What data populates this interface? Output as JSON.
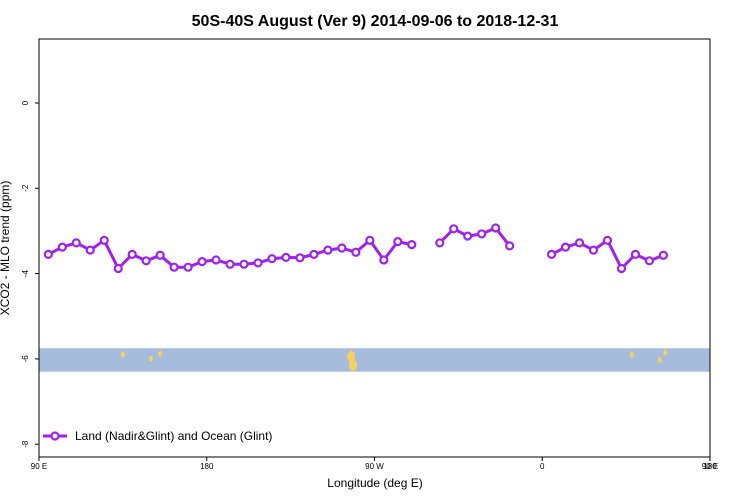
{
  "chart_data": {
    "type": "line",
    "title": "50S-40S August (Ver 9)   2014-09-06 to 2018-12-31",
    "xlabel": "Longitude (deg E)",
    "ylabel": "XCO2 - MLO trend (ppm)",
    "xlim": [
      90,
      450
    ],
    "ylim": [
      -8.3,
      1.5
    ],
    "xticks": [
      {
        "value": 90,
        "label": "90 E"
      },
      {
        "value": 180,
        "label": "180"
      },
      {
        "value": 270,
        "label": "90 W"
      },
      {
        "value": 360,
        "label": "0"
      },
      {
        "value": 450,
        "label": "90 E"
      },
      {
        "value": 540,
        "label": "180"
      }
    ],
    "yticks": [
      {
        "value": 0,
        "label": "0"
      },
      {
        "value": -2,
        "label": "-2"
      },
      {
        "value": -4,
        "label": "-4"
      },
      {
        "value": -6,
        "label": "-6"
      },
      {
        "value": -8,
        "label": "-8"
      }
    ],
    "grid": false,
    "legend": {
      "position": "bottom-left"
    },
    "series": [
      {
        "name": "Land (Nadir&Glint) and Ocean (Glint)",
        "color": "#a020f0",
        "segments": [
          [
            [
              95,
              -3.55
            ],
            [
              102.5,
              -3.38
            ],
            [
              110,
              -3.28
            ],
            [
              117.5,
              -3.45
            ],
            [
              125,
              -3.22
            ],
            [
              132.5,
              -3.88
            ],
            [
              140,
              -3.55
            ],
            [
              147.5,
              -3.7
            ],
            [
              155,
              -3.57
            ],
            [
              162.5,
              -3.85
            ],
            [
              170,
              -3.85
            ],
            [
              177.5,
              -3.72
            ],
            [
              185,
              -3.68
            ],
            [
              192.5,
              -3.78
            ],
            [
              200,
              -3.78
            ],
            [
              207.5,
              -3.75
            ],
            [
              215,
              -3.65
            ],
            [
              222.5,
              -3.62
            ],
            [
              230,
              -3.63
            ],
            [
              237.5,
              -3.55
            ],
            [
              245,
              -3.45
            ],
            [
              252.5,
              -3.4
            ],
            [
              260,
              -3.5
            ],
            [
              267.5,
              -3.22
            ],
            [
              275,
              -3.68
            ],
            [
              282.5,
              -3.25
            ],
            [
              290,
              -3.32
            ]
          ],
          [
            [
              305,
              -3.28
            ],
            [
              312.5,
              -2.95
            ],
            [
              320,
              -3.12
            ],
            [
              327.5,
              -3.07
            ],
            [
              335,
              -2.93
            ],
            [
              342.5,
              -3.35
            ]
          ],
          [
            [
              365,
              -3.55
            ],
            [
              372.5,
              -3.38
            ],
            [
              380,
              -3.28
            ],
            [
              387.5,
              -3.45
            ],
            [
              395,
              -3.22
            ],
            [
              402.5,
              -3.88
            ],
            [
              410,
              -3.55
            ],
            [
              417.5,
              -3.7
            ],
            [
              425,
              -3.57
            ]
          ]
        ]
      }
    ],
    "map_strip": {
      "y_range": [
        -6.3,
        -5.75
      ],
      "ocean_color": "#a6bcdc",
      "land_color": "#f5d060",
      "land_patches": [
        {
          "lon": 135,
          "y": -5.9
        },
        {
          "lon": 150,
          "y": -6.0
        },
        {
          "lon": 155,
          "y": -5.88
        },
        {
          "lon": 257.5,
          "y": -5.95
        },
        {
          "lon": 258.5,
          "y": -6.15
        },
        {
          "lon": 408,
          "y": -5.9
        },
        {
          "lon": 423,
          "y": -6.02
        },
        {
          "lon": 426,
          "y": -5.85
        }
      ]
    }
  }
}
